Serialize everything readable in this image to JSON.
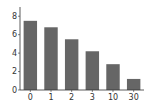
{
  "chart_data": {
    "type": "bar",
    "categories": [
      "0",
      "1",
      "2",
      "3",
      "10",
      "30"
    ],
    "values": [
      7.5,
      6.8,
      5.5,
      4.2,
      2.8,
      1.2
    ],
    "color": "#666666",
    "ylim": [
      0,
      9
    ],
    "yticks": [
      0,
      2,
      4,
      6,
      8
    ],
    "grid": false
  }
}
